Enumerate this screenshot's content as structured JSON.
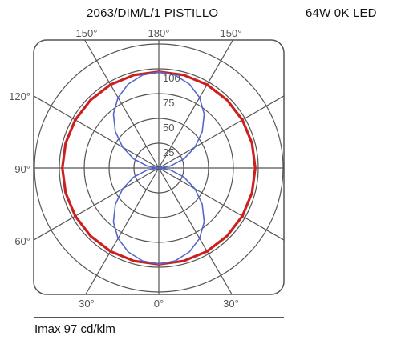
{
  "header": {
    "title": "2063/DIM/L/1  PISTILLO",
    "lamp": "64W  0K  LED"
  },
  "footer": {
    "imax": "Imax 97 cd/klm"
  },
  "chart_data": {
    "type": "polar",
    "grid": true,
    "radial_ticks": [
      25,
      50,
      75,
      100
    ],
    "radial_max": 125,
    "angle_labels": {
      "top": [
        "150°",
        "180°",
        "150°"
      ],
      "bottom": [
        "30°",
        "0°",
        "30°"
      ],
      "left": [
        "120°",
        "90°",
        "60°"
      ]
    },
    "colors": {
      "c0_c180": "#cc1f1f",
      "c90_c270": "#5566cc",
      "grid": "#555555"
    },
    "series": [
      {
        "color_key": "c0_c180",
        "angles": [
          0,
          15,
          30,
          45,
          60,
          75,
          90,
          105,
          120,
          135,
          150,
          165,
          180
        ],
        "values": [
          97,
          97,
          97,
          97,
          97,
          97,
          97,
          97,
          97,
          97,
          97,
          97,
          97
        ]
      },
      {
        "color_key": "c90_c270",
        "angles": [
          0,
          10,
          20,
          30,
          40,
          50,
          60,
          70,
          80,
          90,
          100,
          110,
          120,
          130,
          140,
          150,
          160,
          170,
          180
        ],
        "values": [
          97,
          95,
          90,
          82,
          71,
          57,
          42,
          27,
          12,
          0,
          12,
          27,
          42,
          57,
          71,
          82,
          90,
          95,
          97
        ]
      }
    ]
  }
}
